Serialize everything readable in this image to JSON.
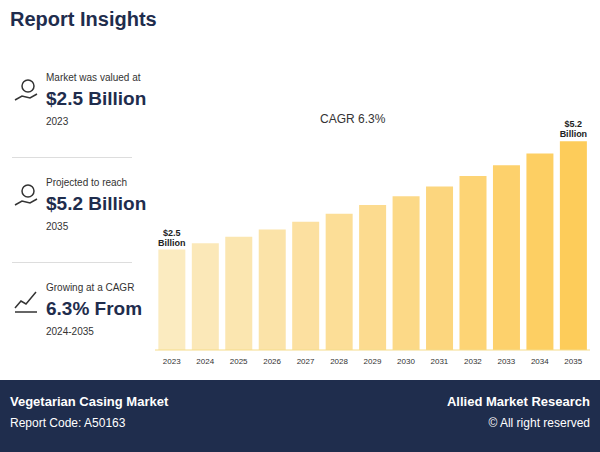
{
  "header": {
    "title": "Report Insights"
  },
  "panel": [
    {
      "caption": "Market was valued at",
      "value": "$2.5 Billion",
      "note": "2023"
    },
    {
      "caption": "Projected to reach",
      "value": "$5.2 Billion",
      "note": "2035"
    },
    {
      "caption": "Growing at a CAGR",
      "value": "6.3% From",
      "note": "2024-2035"
    }
  ],
  "chart_data": {
    "type": "bar",
    "annotation": "CAGR 6.3%",
    "categories": [
      "2023",
      "2024",
      "2025",
      "2026",
      "2027",
      "2028",
      "2029",
      "2030",
      "2031",
      "2032",
      "2033",
      "2034",
      "2035"
    ],
    "values": [
      2.5,
      2.66,
      2.82,
      3.0,
      3.19,
      3.39,
      3.61,
      3.83,
      4.07,
      4.33,
      4.6,
      4.89,
      5.2
    ],
    "value_labels": [
      "$2.5 Billion",
      null,
      null,
      null,
      null,
      null,
      null,
      null,
      null,
      null,
      null,
      null,
      "$5.2 Billion"
    ],
    "colors": [
      "#FBEBC0",
      "#FBE8B8",
      "#FBE6B0",
      "#FBE3A8",
      "#FCE0A0",
      "#FCDE97",
      "#FCDB8F",
      "#FCD987",
      "#FCD67E",
      "#FDD475",
      "#FDD16C",
      "#FDCF63",
      "#FDCC5A"
    ],
    "ylim": [
      0,
      6
    ],
    "tick_labels": "x",
    "grid": false
  },
  "footer": {
    "left_title": "Vegetarian Casing Market",
    "left_sub": "Report Code: A50163",
    "right_title": "Allied Market Research",
    "right_sub": "© All right reserved"
  }
}
